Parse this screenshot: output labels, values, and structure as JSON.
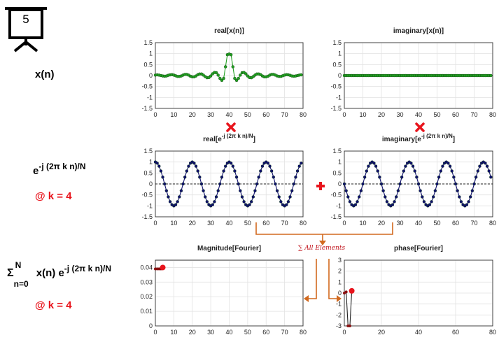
{
  "slide_number": "5",
  "row_labels": {
    "signal": "x(n)",
    "kernel_base": "e",
    "kernel_exp": "-j (2π k n)/N",
    "k_note": "@ k = 4",
    "sum_symbol": "Σ",
    "sum_upper": "N",
    "sum_lower": "n=0",
    "sum_body": "x(n) e",
    "sum_exp": "-j (2π k n)/N",
    "sum_k_note": "@ k = 4"
  },
  "operators": {
    "times_icon": "red-x-icon",
    "plus_icon": "red-plus-icon",
    "sum_note": "∑ All Elements"
  },
  "colors": {
    "green_marker": "#22a022",
    "navy_line": "#10106e",
    "red_accent": "#e8141c",
    "arrow_orange": "#d2691e"
  },
  "chart_data": [
    {
      "id": "real_x",
      "type": "line",
      "title": "real[x(n)]",
      "xlim": [
        0,
        80
      ],
      "ylim": [
        -1.5,
        1.5
      ],
      "xticks": [
        "0",
        "10",
        "20",
        "30",
        "40",
        "50",
        "60",
        "70",
        "80"
      ],
      "yticks": [
        "1.5",
        "1",
        "0.5",
        "0",
        "-0.5",
        "-1",
        "-1.5"
      ],
      "grid": true,
      "x": [
        0,
        1,
        2,
        3,
        4,
        5,
        6,
        7,
        8,
        9,
        10,
        11,
        12,
        13,
        14,
        15,
        16,
        17,
        18,
        19,
        20,
        21,
        22,
        23,
        24,
        25,
        26,
        27,
        28,
        29,
        30,
        31,
        32,
        33,
        34,
        35,
        36,
        37,
        38,
        39,
        40,
        41,
        42,
        43,
        44,
        45,
        46,
        47,
        48,
        49,
        50,
        51,
        52,
        53,
        54,
        55,
        56,
        57,
        58,
        59,
        60,
        61,
        62,
        63,
        64,
        65,
        66,
        67,
        68,
        69,
        70,
        71,
        72,
        73,
        74,
        75,
        76,
        77,
        78,
        79
      ],
      "y": [
        0.02,
        0.03,
        0.02,
        0.0,
        -0.02,
        -0.03,
        -0.02,
        0.01,
        0.03,
        0.04,
        0.02,
        -0.01,
        -0.04,
        -0.04,
        -0.02,
        0.02,
        0.05,
        0.05,
        0.02,
        -0.03,
        -0.06,
        -0.06,
        -0.02,
        0.04,
        0.07,
        0.07,
        0.02,
        -0.05,
        -0.1,
        -0.09,
        -0.02,
        0.08,
        0.14,
        0.13,
        0.02,
        -0.13,
        -0.22,
        -0.13,
        0.4,
        0.95,
        0.98,
        0.95,
        0.4,
        -0.13,
        -0.22,
        -0.13,
        0.02,
        0.13,
        0.14,
        0.08,
        -0.02,
        -0.09,
        -0.1,
        -0.05,
        0.02,
        0.07,
        0.07,
        0.04,
        -0.02,
        -0.06,
        -0.06,
        -0.03,
        0.02,
        0.05,
        0.05,
        0.02,
        -0.02,
        -0.04,
        -0.04,
        -0.01,
        0.02,
        0.04,
        0.03,
        0.01,
        -0.02,
        -0.03,
        -0.02,
        0.0,
        0.02,
        0.03
      ],
      "marker": "circle",
      "color": "#22a022"
    },
    {
      "id": "imag_x",
      "type": "line",
      "title": "imaginary[x(n)]",
      "xlim": [
        0,
        80
      ],
      "ylim": [
        -1.5,
        1.5
      ],
      "xticks": [
        "0",
        "10",
        "20",
        "30",
        "40",
        "50",
        "60",
        "70",
        "80"
      ],
      "yticks": [
        "1.5",
        "1",
        "0.5",
        "0",
        "-0.5",
        "-1",
        "-1.5"
      ],
      "grid": true,
      "x": [
        0,
        1,
        2,
        3,
        4,
        5,
        6,
        7,
        8,
        9,
        10,
        11,
        12,
        13,
        14,
        15,
        16,
        17,
        18,
        19,
        20,
        21,
        22,
        23,
        24,
        25,
        26,
        27,
        28,
        29,
        30,
        31,
        32,
        33,
        34,
        35,
        36,
        37,
        38,
        39,
        40,
        41,
        42,
        43,
        44,
        45,
        46,
        47,
        48,
        49,
        50,
        51,
        52,
        53,
        54,
        55,
        56,
        57,
        58,
        59,
        60,
        61,
        62,
        63,
        64,
        65,
        66,
        67,
        68,
        69,
        70,
        71,
        72,
        73,
        74,
        75,
        76,
        77,
        78,
        79
      ],
      "y": [
        0,
        0,
        0,
        0,
        0,
        0,
        0,
        0,
        0,
        0,
        0,
        0,
        0,
        0,
        0,
        0,
        0,
        0,
        0,
        0,
        0,
        0,
        0,
        0,
        0,
        0,
        0,
        0,
        0,
        0,
        0,
        0,
        0,
        0,
        0,
        0,
        0,
        0,
        0,
        0,
        0,
        0,
        0,
        0,
        0,
        0,
        0,
        0,
        0,
        0,
        0,
        0,
        0,
        0,
        0,
        0,
        0,
        0,
        0,
        0,
        0,
        0,
        0,
        0,
        0,
        0,
        0,
        0,
        0,
        0,
        0,
        0,
        0,
        0,
        0,
        0,
        0,
        0,
        0,
        0
      ],
      "marker": "circle",
      "color": "#22a022"
    },
    {
      "id": "real_kernel",
      "type": "line",
      "title_base": "real[e",
      "title_exp": "-j (2π k n)/N",
      "title_end": "]",
      "xlim": [
        0,
        80
      ],
      "ylim": [
        -1.5,
        1.5
      ],
      "xticks": [
        "0",
        "10",
        "20",
        "30",
        "40",
        "50",
        "60",
        "70",
        "80"
      ],
      "yticks": [
        "1.5",
        "1",
        "0.5",
        "0",
        "-0.5",
        "-1",
        "-1.5"
      ],
      "grid": true,
      "zero_line": true,
      "x": [
        0,
        1,
        2,
        3,
        4,
        5,
        6,
        7,
        8,
        9,
        10,
        11,
        12,
        13,
        14,
        15,
        16,
        17,
        18,
        19,
        20,
        21,
        22,
        23,
        24,
        25,
        26,
        27,
        28,
        29,
        30,
        31,
        32,
        33,
        34,
        35,
        36,
        37,
        38,
        39,
        40,
        41,
        42,
        43,
        44,
        45,
        46,
        47,
        48,
        49,
        50,
        51,
        52,
        53,
        54,
        55,
        56,
        57,
        58,
        59,
        60,
        61,
        62,
        63,
        64,
        65,
        66,
        67,
        68,
        69,
        70,
        71,
        72,
        73,
        74,
        75,
        76,
        77,
        78,
        79
      ],
      "y": [
        1.0,
        0.95,
        0.81,
        0.59,
        0.31,
        0.0,
        -0.31,
        -0.59,
        -0.81,
        -0.95,
        -1.0,
        -0.95,
        -0.81,
        -0.59,
        -0.31,
        0.0,
        0.31,
        0.59,
        0.81,
        0.95,
        1.0,
        0.95,
        0.81,
        0.59,
        0.31,
        0.0,
        -0.31,
        -0.59,
        -0.81,
        -0.95,
        -1.0,
        -0.95,
        -0.81,
        -0.59,
        -0.31,
        0.0,
        0.31,
        0.59,
        0.81,
        0.95,
        1.0,
        0.95,
        0.81,
        0.59,
        0.31,
        0.0,
        -0.31,
        -0.59,
        -0.81,
        -0.95,
        -1.0,
        -0.95,
        -0.81,
        -0.59,
        -0.31,
        0.0,
        0.31,
        0.59,
        0.81,
        0.95,
        1.0,
        0.95,
        0.81,
        0.59,
        0.31,
        0.0,
        -0.31,
        -0.59,
        -0.81,
        -0.95,
        -1.0,
        -0.95,
        -0.81,
        -0.59,
        -0.31,
        0.0,
        0.31,
        0.59,
        0.81,
        0.95
      ],
      "marker": "circle",
      "color": "#10106e"
    },
    {
      "id": "imag_kernel",
      "type": "line",
      "title_base": "imaginary[e",
      "title_exp": "-j (2π k n)/N",
      "title_end": "]",
      "xlim": [
        0,
        80
      ],
      "ylim": [
        -1.5,
        1.5
      ],
      "xticks": [
        "0",
        "10",
        "20",
        "30",
        "40",
        "50",
        "60",
        "70",
        "80"
      ],
      "yticks": [
        "1.5",
        "1",
        "0.5",
        "0",
        "-0.5",
        "-1",
        "-1.5"
      ],
      "grid": true,
      "zero_line": true,
      "x": [
        0,
        1,
        2,
        3,
        4,
        5,
        6,
        7,
        8,
        9,
        10,
        11,
        12,
        13,
        14,
        15,
        16,
        17,
        18,
        19,
        20,
        21,
        22,
        23,
        24,
        25,
        26,
        27,
        28,
        29,
        30,
        31,
        32,
        33,
        34,
        35,
        36,
        37,
        38,
        39,
        40,
        41,
        42,
        43,
        44,
        45,
        46,
        47,
        48,
        49,
        50,
        51,
        52,
        53,
        54,
        55,
        56,
        57,
        58,
        59,
        60,
        61,
        62,
        63,
        64,
        65,
        66,
        67,
        68,
        69,
        70,
        71,
        72,
        73,
        74,
        75,
        76,
        77,
        78,
        79
      ],
      "y": [
        0.0,
        -0.31,
        -0.59,
        -0.81,
        -0.95,
        -1.0,
        -0.95,
        -0.81,
        -0.59,
        -0.31,
        0.0,
        0.31,
        0.59,
        0.81,
        0.95,
        1.0,
        0.95,
        0.81,
        0.59,
        0.31,
        0.0,
        -0.31,
        -0.59,
        -0.81,
        -0.95,
        -1.0,
        -0.95,
        -0.81,
        -0.59,
        -0.31,
        0.0,
        0.31,
        0.59,
        0.81,
        0.95,
        1.0,
        0.95,
        0.81,
        0.59,
        0.31,
        0.0,
        -0.31,
        -0.59,
        -0.81,
        -0.95,
        -1.0,
        -0.95,
        -0.81,
        -0.59,
        -0.31,
        0.0,
        0.31,
        0.59,
        0.81,
        0.95,
        1.0,
        0.95,
        0.81,
        0.59,
        0.31,
        0.0,
        -0.31,
        -0.59,
        -0.81,
        -0.95,
        -1.0,
        -0.95,
        -0.81,
        -0.59,
        -0.31,
        0.0,
        0.31,
        0.59,
        0.81,
        0.95,
        1.0,
        0.95,
        0.81,
        0.59,
        0.31
      ],
      "marker": "circle",
      "color": "#10106e"
    },
    {
      "id": "magnitude",
      "type": "line",
      "title": "Magnitude[Fourier]",
      "xlim": [
        0,
        80
      ],
      "ylim": [
        0,
        0.045
      ],
      "xticks": [
        "0",
        "10",
        "20",
        "30",
        "40",
        "50",
        "60",
        "70",
        "80"
      ],
      "yticks": [
        "0.04",
        "0.03",
        "0.02",
        "0.01",
        "0"
      ],
      "ytick_values": [
        0.04,
        0.03,
        0.02,
        0.01,
        0
      ],
      "grid": true,
      "x": [
        0,
        1,
        2,
        3,
        4
      ],
      "y": [
        0.039,
        0.039,
        0.039,
        0.039,
        0.04
      ],
      "highlight_index": 4,
      "color": "#222222",
      "highlight_color": "#e8141c"
    },
    {
      "id": "phase",
      "type": "line",
      "title": "phase[Fourier]",
      "xlim": [
        0,
        80
      ],
      "ylim": [
        -3,
        3
      ],
      "xticks": [
        "0",
        "20",
        "40",
        "60",
        "80"
      ],
      "xtick_values": [
        0,
        20,
        40,
        60,
        80
      ],
      "yticks": [
        "3",
        "2",
        "1",
        "0",
        "-1",
        "-2",
        "-3"
      ],
      "grid": true,
      "x": [
        0,
        1,
        2,
        3,
        4
      ],
      "y": [
        0.0,
        0.1,
        -3.0,
        -3.0,
        0.2
      ],
      "highlight_index": 4,
      "color": "#222222",
      "highlight_color": "#e8141c"
    }
  ]
}
